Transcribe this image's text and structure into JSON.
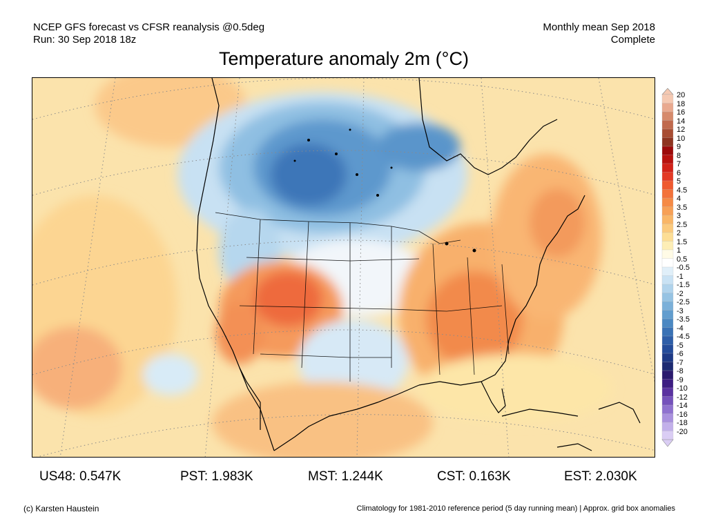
{
  "header": {
    "line1_left": "NCEP GFS forecast vs CFSR reanalysis @0.5deg",
    "line2_left": "Run: 30 Sep 2018 18z",
    "line1_right": "Monthly mean Sep 2018",
    "line2_right": "Complete"
  },
  "title": "Temperature anomaly 2m (°C)",
  "legend": {
    "labels": [
      "20",
      "18",
      "16",
      "14",
      "12",
      "10",
      "9",
      "8",
      "7",
      "6",
      "5",
      "4.5",
      "4",
      "3.5",
      "3",
      "2.5",
      "2",
      "1.5",
      "1",
      "0.5",
      "-0.5",
      "-1",
      "-1.5",
      "-2",
      "-2.5",
      "-3",
      "-3.5",
      "-4",
      "-4.5",
      "-5",
      "-6",
      "-7",
      "-8",
      "-9",
      "-10",
      "-12",
      "-14",
      "-16",
      "-18",
      "-20"
    ],
    "colors": [
      "#f5c9b2",
      "#e9a98f",
      "#d68a6c",
      "#c06a4e",
      "#a84d33",
      "#8e3420",
      "#9c0a0a",
      "#b8120e",
      "#d22218",
      "#e33a25",
      "#ef5a30",
      "#f3733b",
      "#f58a46",
      "#f7a056",
      "#f9b667",
      "#fbca7d",
      "#fdde95",
      "#fdeeb6",
      "#fffbe6",
      "#ffffff",
      "#e0eff9",
      "#c9e2f4",
      "#b0d3ec",
      "#96c3e3",
      "#7bb0d9",
      "#629dce",
      "#4b88c2",
      "#3a72b5",
      "#2e5ea8",
      "#244c9a",
      "#1e3a86",
      "#1d2b72",
      "#2b1b6e",
      "#3d1d82",
      "#5a32a0",
      "#7552bb",
      "#8f72cf",
      "#a991de",
      "#c2b0ea",
      "#dacdf4"
    ]
  },
  "stats": [
    {
      "label": "US48: 0.547K"
    },
    {
      "label": "PST: 1.983K"
    },
    {
      "label": "MST: 1.244K"
    },
    {
      "label": "CST: 0.163K"
    },
    {
      "label": "EST: 2.030K"
    }
  ],
  "footer": {
    "left": "(c) Karsten Haustein",
    "right": "Climatology for 1981-2010 reference period (5 day running mean) | Approx. grid box anomalies"
  }
}
